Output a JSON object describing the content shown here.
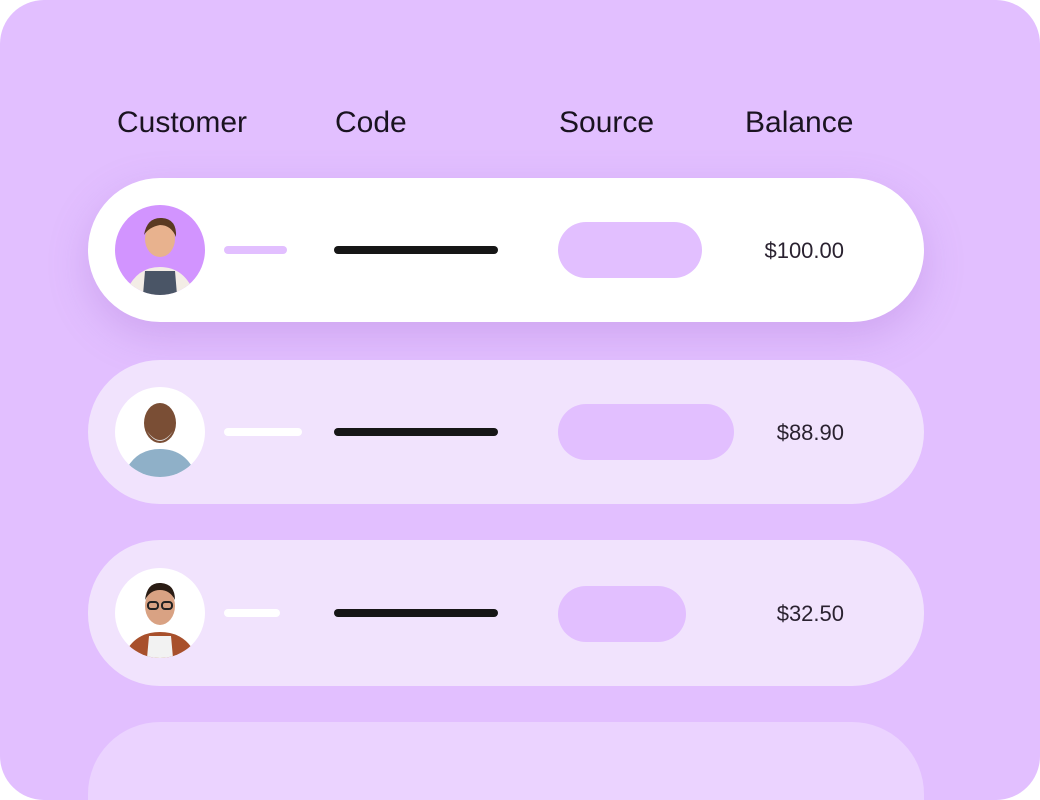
{
  "table": {
    "headers": [
      "Customer",
      "Code",
      "Source",
      "Balance"
    ],
    "rows": [
      {
        "avatar": "woman-apron-photo",
        "balance": "$100.00",
        "state": "highlighted"
      },
      {
        "avatar": "older-man-beard-photo",
        "balance": "$88.90"
      },
      {
        "avatar": "man-glasses-photo",
        "balance": "$32.50"
      }
    ]
  },
  "colors": {
    "background": "#e2bfff",
    "row": "#f1e3fd",
    "row_active": "#ffffff",
    "pill": "#e2bfff",
    "code_bar": "#161616"
  }
}
